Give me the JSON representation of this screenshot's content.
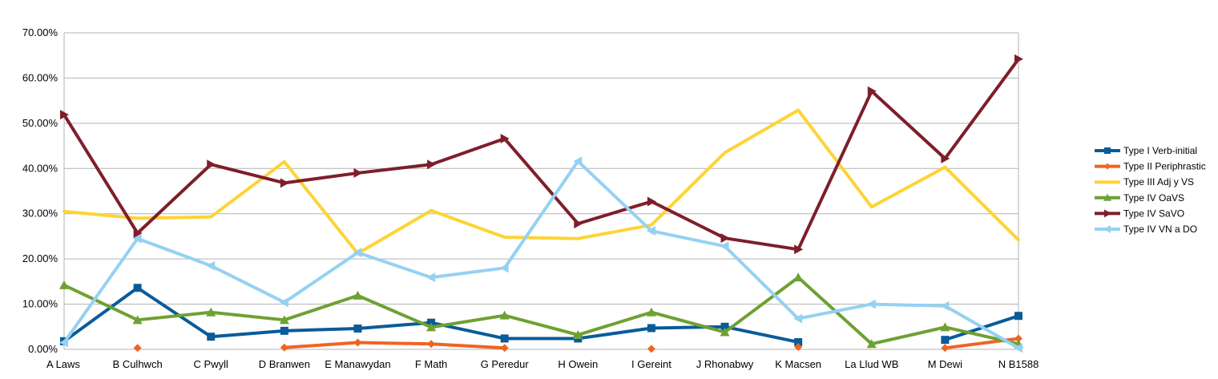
{
  "chart_data": {
    "type": "line",
    "title": "",
    "xlabel": "",
    "ylabel": "",
    "categories": [
      "A Laws",
      "B Culhwch",
      "C Pwyll",
      "D Branwen",
      "E Manawydan",
      "F Math",
      "G Peredur",
      "H Owein",
      "I Gereint",
      "J Rhonabwy",
      "K Macsen",
      "La Llud WB",
      "M Dewi",
      "N B1588"
    ],
    "ylim": [
      0,
      0.7
    ],
    "yticks": [
      0,
      0.1,
      0.2,
      0.3,
      0.4,
      0.5,
      0.6,
      0.7
    ],
    "ytick_labels": [
      "0.00%",
      "10.00%",
      "20.00%",
      "30.00%",
      "40.00%",
      "50.00%",
      "60.00%",
      "70.00%"
    ],
    "grid": "horizontal",
    "legend_position": "right",
    "series": [
      {
        "name": "Type I Verb-initial",
        "color": "#0a5b99",
        "marker": "square",
        "values": [
          0.018,
          0.136,
          0.028,
          0.041,
          0.046,
          0.059,
          0.024,
          0.024,
          0.047,
          0.05,
          0.016,
          null,
          0.021,
          0.074
        ]
      },
      {
        "name": "Type II Periphrastic",
        "color": "#f26321",
        "marker": "diamond",
        "values": [
          null,
          0.003,
          null,
          0.004,
          0.015,
          0.012,
          0.003,
          null,
          0.001,
          null,
          0.005,
          null,
          0.003,
          0.024
        ]
      },
      {
        "name": "Type III Adj y VS",
        "color": "#fdd435",
        "marker": "none",
        "values": [
          0.305,
          0.29,
          0.293,
          0.415,
          0.212,
          0.307,
          0.248,
          0.245,
          0.275,
          0.435,
          0.529,
          0.315,
          0.403,
          0.242
        ]
      },
      {
        "name": "Type IV OaVS",
        "color": "#6ea133",
        "marker": "triangle",
        "values": [
          0.142,
          0.065,
          0.082,
          0.065,
          0.119,
          0.049,
          0.075,
          0.032,
          0.082,
          0.038,
          0.159,
          0.012,
          0.049,
          0.012
        ]
      },
      {
        "name": "Type IV SaVO",
        "color": "#7e1e2b",
        "marker": "triangle-right",
        "values": [
          0.519,
          0.257,
          0.409,
          0.368,
          0.39,
          0.409,
          0.466,
          0.278,
          0.327,
          0.246,
          0.221,
          0.571,
          0.422,
          0.642
        ]
      },
      {
        "name": "Type IV VN a DO",
        "color": "#95d1f2",
        "marker": "triangle-left",
        "values": [
          0.015,
          0.245,
          0.185,
          0.104,
          0.214,
          0.159,
          0.18,
          0.416,
          0.262,
          0.228,
          0.068,
          0.1,
          0.096,
          0.003
        ]
      }
    ]
  }
}
